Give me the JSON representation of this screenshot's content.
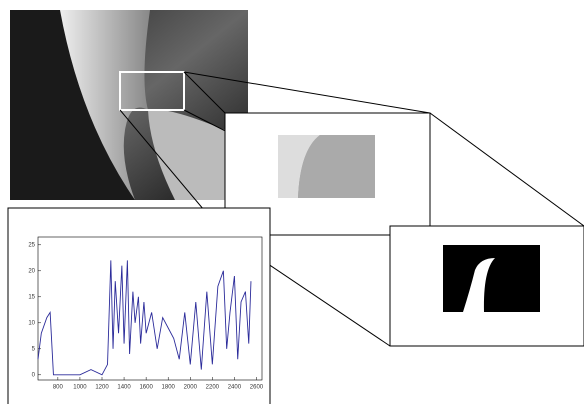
{
  "chart_data": {
    "type": "line",
    "x": [
      620,
      650,
      700,
      730,
      760,
      800,
      900,
      1000,
      1100,
      1200,
      1250,
      1280,
      1300,
      1320,
      1350,
      1380,
      1400,
      1430,
      1450,
      1480,
      1500,
      1530,
      1550,
      1580,
      1600,
      1650,
      1700,
      1750,
      1800,
      1850,
      1900,
      1950,
      2000,
      2050,
      2100,
      2150,
      2200,
      2250,
      2300,
      2330,
      2360,
      2400,
      2430,
      2460,
      2500,
      2530,
      2550
    ],
    "series": [
      {
        "color": "#2b2b9a",
        "values": [
          3,
          8,
          11,
          12,
          0,
          0,
          0,
          0,
          1,
          0,
          2,
          22,
          5,
          18,
          8,
          21,
          6,
          22,
          4,
          16,
          10,
          15,
          6,
          14,
          8,
          12,
          5,
          11,
          9,
          7,
          3,
          12,
          2,
          14,
          1,
          16,
          2,
          17,
          20,
          5,
          12,
          19,
          3,
          14,
          16,
          6,
          18
        ]
      }
    ],
    "xlim": [
      620,
      2650
    ],
    "ylim": [
      -1,
      26.5
    ],
    "xticks": [
      800,
      1000,
      1200,
      1400,
      1600,
      1800,
      2000,
      2200,
      2400,
      2600
    ],
    "yticks": [
      0,
      5,
      10,
      15,
      20,
      25
    ]
  }
}
